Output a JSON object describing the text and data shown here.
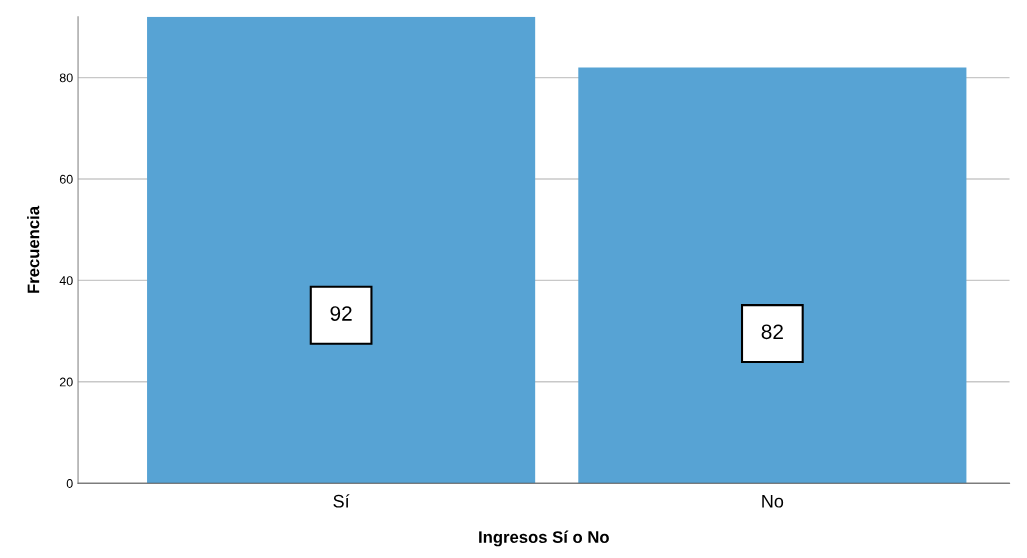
{
  "chart_data": {
    "type": "bar",
    "xlabel": "Ingresos Sí o No",
    "ylabel": "Frecuencia",
    "categories": [
      "Sí",
      "No"
    ],
    "values": [
      92,
      82
    ],
    "color": "#57a3d4",
    "ylim": [
      0,
      92
    ],
    "yticks": [
      0,
      20,
      40,
      60,
      80
    ],
    "grid": "y",
    "data_labels": true
  }
}
